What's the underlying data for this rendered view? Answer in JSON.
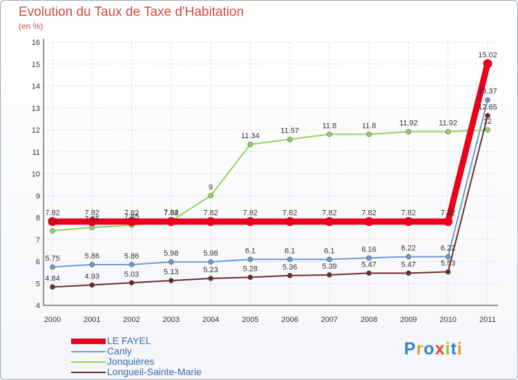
{
  "chart_data": {
    "type": "line",
    "title": "Evolution du Taux de Taxe d'Habitation",
    "subtitle": "(en %)",
    "xlabel": "",
    "ylabel": "",
    "x": [
      "2000",
      "2001",
      "2002",
      "2003",
      "2004",
      "2005",
      "2006",
      "2007",
      "2008",
      "2009",
      "2010",
      "2011"
    ],
    "ylim": [
      4,
      16
    ],
    "yticks": [
      "4",
      "5",
      "6",
      "7",
      "8",
      "9",
      "10",
      "11",
      "12",
      "13",
      "14",
      "15",
      "16"
    ],
    "grid": true,
    "legend_position": "bottom-left",
    "series": [
      {
        "name": "LE FAYEL",
        "color": "#e8001c",
        "values": [
          7.82,
          7.82,
          7.82,
          7.82,
          7.82,
          7.82,
          7.82,
          7.82,
          7.82,
          7.82,
          7.82,
          15.02
        ],
        "labels": [
          "7.82",
          "7.82",
          "7.82",
          "7.82",
          "7.82",
          "7.82",
          "7.82",
          "7.82",
          "7.82",
          "7.82",
          "7.82",
          "15.02"
        ]
      },
      {
        "name": "Canly",
        "color": "#6a9bd1",
        "values": [
          5.75,
          5.86,
          5.86,
          5.98,
          5.98,
          6.1,
          6.1,
          6.1,
          6.16,
          6.22,
          6.22,
          13.37
        ],
        "labels": [
          "5.75",
          "5.86",
          "5.86",
          "5.98",
          "5.98",
          "6.1",
          "6.1",
          "6.1",
          "6.16",
          "6.22",
          "6.22",
          "13.37"
        ]
      },
      {
        "name": "Jonquières",
        "color": "#93d45c",
        "values": [
          7.4,
          7.55,
          7.65,
          7.84,
          9,
          11.34,
          11.57,
          11.8,
          11.8,
          11.92,
          11.92,
          12
        ],
        "labels": [
          "7.4",
          "7.55",
          "7.65",
          "7.84",
          "9",
          "11.34",
          "11.57",
          "11.8",
          "11.8",
          "11.92",
          "11.92",
          "12"
        ]
      },
      {
        "name": "Longueil-Sainte-Marie",
        "color": "#6b2a2a",
        "values": [
          4.84,
          4.93,
          5.03,
          5.13,
          5.23,
          5.28,
          5.36,
          5.39,
          5.47,
          5.47,
          5.53,
          12.65
        ],
        "labels": [
          "4.84",
          "4.93",
          "5.03",
          "5.13",
          "5.23",
          "5.28",
          "5.36",
          "5.39",
          "5.47",
          "5.47",
          "5.53",
          "12.65"
        ]
      }
    ]
  },
  "logo": {
    "text": "Proxiti",
    "colors": [
      "#3a7fc2",
      "#e89b23",
      "#3a7fc2",
      "#e84a2a",
      "#8fc23e",
      "#3a7fc2",
      "#e89b23"
    ]
  }
}
